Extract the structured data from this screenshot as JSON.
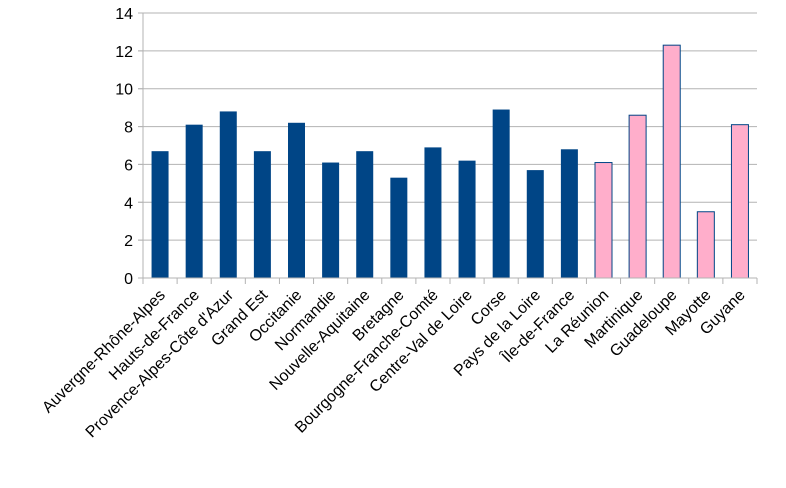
{
  "chart_data": {
    "type": "bar",
    "categories": [
      "Auvergne-Rhône-Alpes",
      "Hauts-de-France",
      "Provence-Alpes-Côte d'Azur",
      "Grand Est",
      "Occitanie",
      "Normandie",
      "Nouvelle-Aquitaine",
      "Bretagne",
      "Bourgogne-Franche-Comté",
      "Centre-Val de Loire",
      "Corse",
      "Pays de la Loire",
      "Île-de-France",
      "La Réunion",
      "Martinique",
      "Guadeloupe",
      "Mayotte",
      "Guyane"
    ],
    "values": [
      6.7,
      8.1,
      8.8,
      6.7,
      8.2,
      6.1,
      6.7,
      5.3,
      6.9,
      6.2,
      8.9,
      5.7,
      6.8,
      6.1,
      8.6,
      12.3,
      3.5,
      8.1
    ],
    "colors": [
      "#004586",
      "#004586",
      "#004586",
      "#004586",
      "#004586",
      "#004586",
      "#004586",
      "#004586",
      "#004586",
      "#004586",
      "#004586",
      "#004586",
      "#004586",
      "#ffaecb",
      "#ffaecb",
      "#ffaecb",
      "#ffaecb",
      "#ffaecb"
    ],
    "series_colors": {
      "metropolitan": "#004586",
      "overseas": "#ffaecb",
      "overseas_outline": "#004586"
    },
    "ylim": [
      0,
      14
    ],
    "yticks": [
      0,
      2,
      4,
      6,
      8,
      10,
      12,
      14
    ],
    "grid": true,
    "legend": "none",
    "title": "",
    "xlabel": "",
    "ylabel": ""
  }
}
